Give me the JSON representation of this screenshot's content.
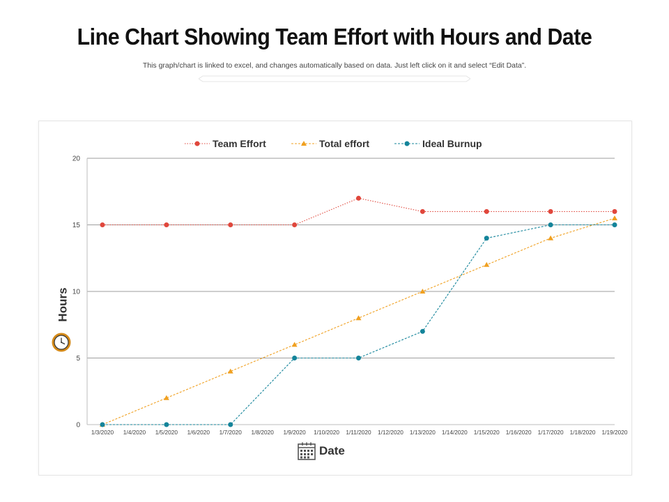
{
  "page": {
    "title": "Line Chart Showing Team Effort with Hours and Date",
    "subtitle": "This graph/chart is linked to excel, and changes automatically based on data. Just left click on it and select “Edit Data”."
  },
  "colors": {
    "team_effort": "#e0473c",
    "total_effort": "#f0a020",
    "ideal_burnup": "#14849a",
    "grid": "#9e9e9e",
    "axis_text": "#444444",
    "clock": "#d48a1a",
    "calendar": "#555555"
  },
  "icons": {
    "y_axis": "clock-icon",
    "x_axis": "calendar-icon"
  },
  "chart_data": {
    "type": "line",
    "categories": [
      "1/3/2020",
      "1/4/2020",
      "1/5/2020",
      "1/6/2020",
      "1/7/2020",
      "1/8/2020",
      "1/9/2020",
      "1/10/2020",
      "1/11/2020",
      "1/12/2020",
      "1/13/2020",
      "1/14/2020",
      "1/15/2020",
      "1/16/2020",
      "1/17/2020",
      "1/18/2020",
      "1/19/2020"
    ],
    "x": [
      "1/3/2020",
      "1/5/2020",
      "1/7/2020",
      "1/9/2020",
      "1/11/2020",
      "1/13/2020",
      "1/15/2020",
      "1/17/2020",
      "1/19/2020"
    ],
    "series": [
      {
        "name": "Team Effort",
        "values": [
          15,
          15,
          15,
          15,
          17,
          16,
          16,
          16,
          16
        ],
        "marker": "circle",
        "color": "#e0473c"
      },
      {
        "name": "Total effort",
        "values": [
          0,
          2,
          4,
          6,
          8,
          10,
          12,
          14,
          15.5
        ],
        "marker": "triangle",
        "color": "#f0a020"
      },
      {
        "name": "Ideal Burnup",
        "values": [
          0,
          0,
          0,
          5,
          5,
          7,
          14,
          15,
          15
        ],
        "marker": "circle",
        "color": "#14849a"
      }
    ],
    "xlabel": "Date",
    "ylabel": "Hours",
    "ylim": [
      0,
      20
    ],
    "yticks": [
      0,
      5,
      10,
      15,
      20
    ],
    "grid": true,
    "legend": "top-center"
  }
}
